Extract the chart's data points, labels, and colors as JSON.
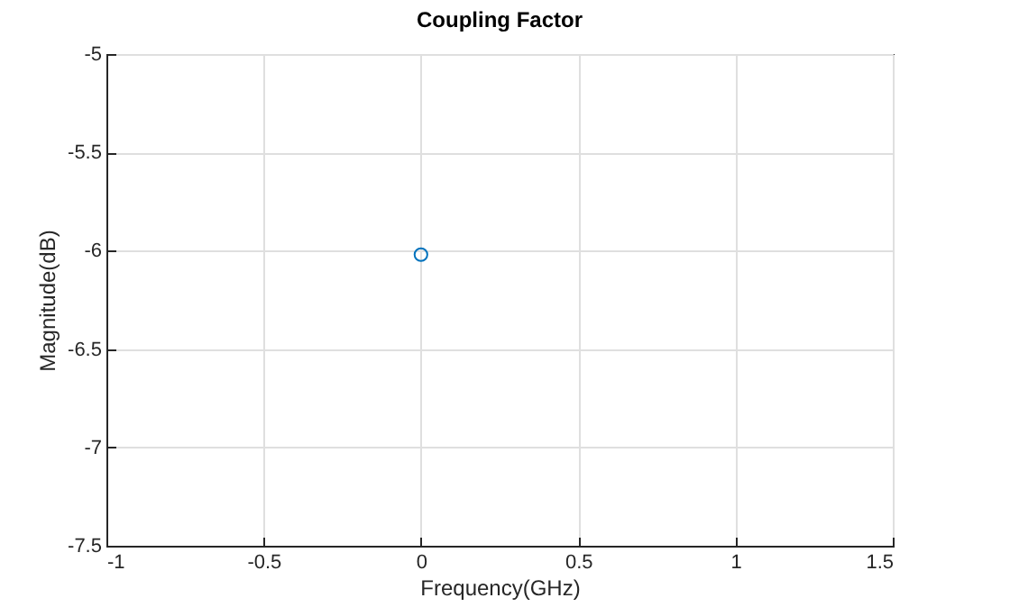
{
  "chart_data": {
    "type": "scatter",
    "title": "Coupling Factor",
    "xlabel": "Frequency(GHz)",
    "ylabel": "Magnitude(dB)",
    "x": [
      0
    ],
    "values": [
      -6.02
    ],
    "color": "#0072bd",
    "marker": "circle",
    "xlim": [
      -1,
      1.5
    ],
    "xticks": [
      -1,
      -0.5,
      0,
      0.5,
      1,
      1.5
    ],
    "ylim": [
      -7.5,
      -5
    ],
    "yticks": [
      -7.5,
      -7,
      -6.5,
      -6,
      -5.5,
      -5
    ],
    "grid": true
  }
}
